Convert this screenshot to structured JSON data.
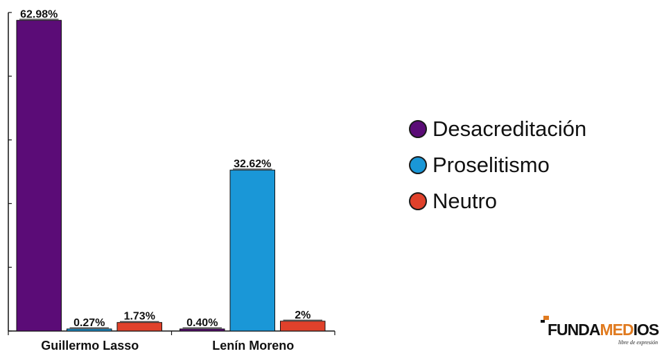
{
  "chart_data": {
    "type": "bar",
    "categories": [
      "Guillermo Lasso",
      "Lenín Moreno"
    ],
    "series": [
      {
        "name": "Desacreditación",
        "color": "#5b0c77",
        "values": [
          62.98,
          0.4
        ],
        "labels": [
          "62.98%",
          "0.40%"
        ]
      },
      {
        "name": "Proselitismo",
        "color": "#1a97d7",
        "values": [
          0.27,
          32.62
        ],
        "labels": [
          "0.27%",
          "32.62%"
        ]
      },
      {
        "name": "Neutro",
        "color": "#e0412b",
        "values": [
          1.73,
          2
        ],
        "labels": [
          "1.73%",
          "2%"
        ]
      }
    ],
    "ylim": [
      0,
      64
    ],
    "y_ticks_labeled": false,
    "grid": false,
    "legend_position": "right",
    "title": "",
    "xlabel": "",
    "ylabel": ""
  },
  "logo": {
    "text_part1": "FUNDA",
    "text_part2": "MED",
    "text_part3": "IOS",
    "tagline": "libre de expresión",
    "accent_color": "#e07a1f"
  }
}
